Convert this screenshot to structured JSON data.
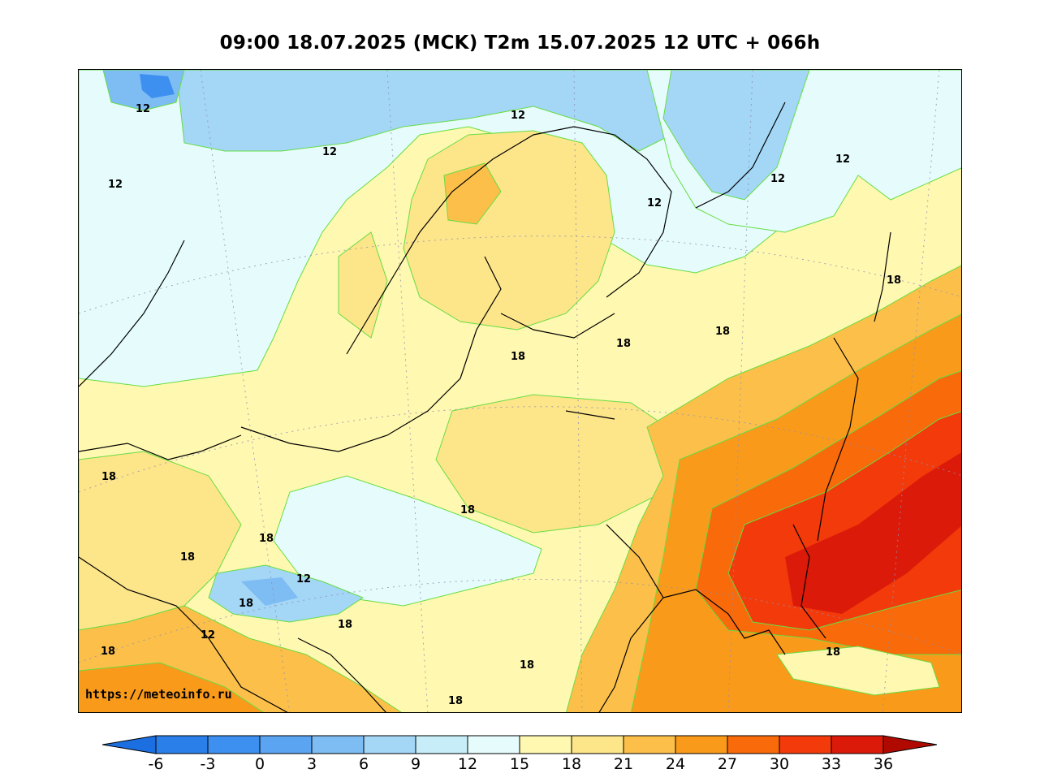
{
  "title": "09:00 18.07.2025 (MCK) T2m 15.07.2025 12 UTC + 066h",
  "watermark": "https://meteoinfo.ru",
  "contour_labels": [
    "12",
    "18"
  ],
  "colorbar": {
    "ticks": [
      "-6",
      "-3",
      "0",
      "3",
      "6",
      "9",
      "12",
      "15",
      "18",
      "21",
      "24",
      "27",
      "30",
      "33",
      "36"
    ],
    "colors": [
      "#1c6fe0",
      "#2a7fe8",
      "#3d8ff0",
      "#5aa4f2",
      "#7ebcf4",
      "#a4d6f6",
      "#c7eef8",
      "#e6fcfc",
      "#fff8b0",
      "#fde58a",
      "#fcc04a",
      "#f99a1a",
      "#f86a0a",
      "#f33a0a",
      "#dc1a0a",
      "#b00a00"
    ]
  },
  "colors": {
    "cold_sea": "#a4d6f6",
    "cool": "#e6fcfc",
    "mild": "#fff8b0",
    "warm": "#fde58a",
    "hot": "#f99a1a",
    "very_hot": "#dc1a0a"
  }
}
